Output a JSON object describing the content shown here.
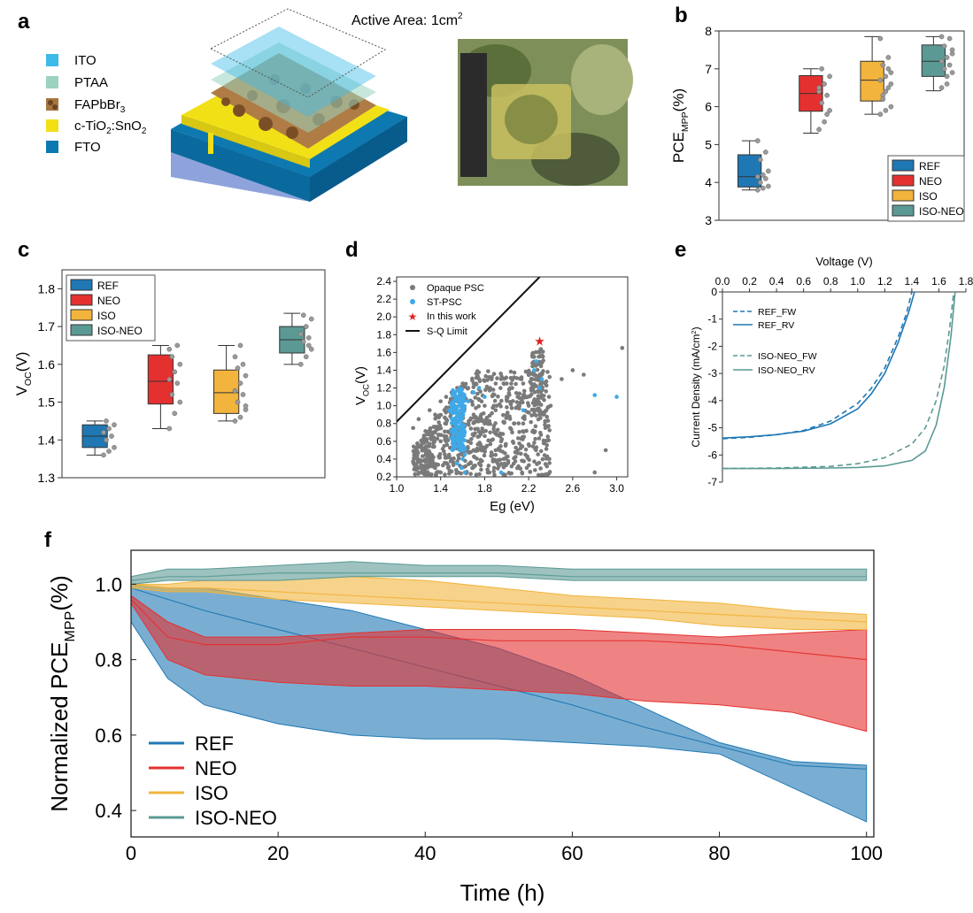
{
  "colors": {
    "REF": "#1f78b4",
    "NEO": "#e53030",
    "ISO": "#f2b43c",
    "ISO-NEO": "#5b9a94",
    "opaque": "#7a7a7a",
    "st": "#3fa9e8",
    "star": "#e02020",
    "ITO": "#3dbbe8",
    "PTAA": "#9bd3c0",
    "ctio": "#f2e017",
    "FTO": "#0d79b0"
  },
  "panel_a": {
    "label": "a",
    "active_area": "Active Area: 1cm",
    "active_area_sup": "2",
    "legend": [
      {
        "icon": "ito-swatch",
        "text": "ITO"
      },
      {
        "icon": "ptaa-swatch",
        "text": "PTAA"
      },
      {
        "icon": "perovskite-swatch",
        "text": "FAPbBr",
        "sub": "3"
      },
      {
        "icon": "ctio-swatch",
        "text": "c-TiO",
        "sub": "2",
        "after": ":SnO",
        "sub2": "2"
      },
      {
        "icon": "fto-swatch",
        "text": "FTO"
      }
    ]
  },
  "chart_data": [
    {
      "panel": "b",
      "type": "box",
      "ylabel": "PCE",
      "ylabel_sub": "MPP",
      "ylabel_unit": "(%)",
      "ylim": [
        3,
        8
      ],
      "yticks": [
        "3",
        "4",
        "5",
        "6",
        "7",
        "8"
      ],
      "legend_position": "bottom-right",
      "series": [
        {
          "name": "REF",
          "q1": 3.88,
          "median": 4.15,
          "q3": 4.73,
          "min": 3.8,
          "max": 5.1,
          "points": [
            3.8,
            3.85,
            3.9,
            4.0,
            4.1,
            4.15,
            4.2,
            4.3,
            4.6,
            4.8,
            5.1
          ]
        },
        {
          "name": "NEO",
          "q1": 5.88,
          "median": 6.35,
          "q3": 6.82,
          "min": 5.3,
          "max": 7.0,
          "points": [
            5.4,
            5.6,
            5.9,
            6.1,
            6.3,
            6.4,
            6.6,
            6.8,
            7.0,
            5.8,
            6.5
          ]
        },
        {
          "name": "ISO",
          "q1": 6.15,
          "median": 6.7,
          "q3": 7.2,
          "min": 5.8,
          "max": 7.85,
          "points": [
            5.8,
            5.9,
            6.0,
            6.3,
            6.5,
            6.7,
            6.8,
            6.9,
            7.1,
            7.3,
            7.8,
            6.4,
            6.6,
            6.2,
            7.0
          ]
        },
        {
          "name": "ISO-NEO",
          "q1": 6.8,
          "median": 7.2,
          "q3": 7.63,
          "min": 6.42,
          "max": 7.85,
          "points": [
            6.5,
            6.6,
            6.9,
            7.0,
            7.1,
            7.2,
            7.3,
            7.5,
            7.6,
            7.8,
            7.85,
            6.8,
            7.4
          ]
        }
      ]
    },
    {
      "panel": "c",
      "type": "box",
      "ylabel": "V",
      "ylabel_sub": "OC",
      "ylabel_unit": "(V)",
      "ylim": [
        1.3,
        1.85
      ],
      "yticks": [
        "1.3",
        "1.4",
        "1.5",
        "1.6",
        "1.7",
        "1.8"
      ],
      "legend_position": "top-left",
      "series": [
        {
          "name": "REF",
          "q1": 1.38,
          "median": 1.41,
          "q3": 1.44,
          "min": 1.36,
          "max": 1.45,
          "points": [
            1.36,
            1.37,
            1.38,
            1.4,
            1.41,
            1.42,
            1.43,
            1.44,
            1.45
          ]
        },
        {
          "name": "NEO",
          "q1": 1.495,
          "median": 1.555,
          "q3": 1.625,
          "min": 1.43,
          "max": 1.65,
          "points": [
            1.43,
            1.47,
            1.5,
            1.52,
            1.55,
            1.56,
            1.58,
            1.6,
            1.62,
            1.65,
            1.64
          ]
        },
        {
          "name": "ISO",
          "q1": 1.47,
          "median": 1.525,
          "q3": 1.585,
          "min": 1.45,
          "max": 1.65,
          "points": [
            1.45,
            1.46,
            1.48,
            1.5,
            1.52,
            1.53,
            1.55,
            1.57,
            1.59,
            1.6,
            1.62,
            1.65,
            1.49
          ]
        },
        {
          "name": "ISO-NEO",
          "q1": 1.63,
          "median": 1.665,
          "q3": 1.7,
          "min": 1.6,
          "max": 1.735,
          "points": [
            1.6,
            1.62,
            1.64,
            1.66,
            1.67,
            1.68,
            1.7,
            1.72,
            1.73,
            1.65
          ]
        }
      ]
    },
    {
      "panel": "d",
      "type": "scatter",
      "xlabel": "Eg (eV)",
      "ylabel": "V",
      "ylabel_sub": "OC",
      "ylabel_unit": "(V)",
      "xlim": [
        1.0,
        3.1
      ],
      "ylim": [
        0.2,
        2.45
      ],
      "xticks": [
        "1.0",
        "1.4",
        "1.8",
        "2.2",
        "2.6",
        "3.0"
      ],
      "yticks": [
        "0.2",
        "0.4",
        "0.6",
        "0.8",
        "1.0",
        "1.2",
        "1.4",
        "1.6",
        "1.8",
        "2.0",
        "2.2",
        "2.4"
      ],
      "legend": [
        "Opaque PSC",
        "ST-PSC",
        "In this work",
        "S-Q Limit"
      ],
      "this_work": {
        "x": 2.3,
        "y": 1.73
      },
      "sq_limit": [
        [
          1.0,
          0.82
        ],
        [
          2.3,
          2.45
        ]
      ],
      "st_points": [
        [
          1.52,
          0.85
        ],
        [
          1.55,
          0.9
        ],
        [
          1.57,
          1.0
        ],
        [
          1.58,
          0.95
        ],
        [
          1.6,
          1.1
        ],
        [
          1.56,
          0.75
        ],
        [
          1.58,
          0.6
        ],
        [
          1.6,
          0.5
        ],
        [
          1.62,
          0.45
        ],
        [
          1.55,
          0.35
        ],
        [
          1.59,
          0.3
        ],
        [
          1.62,
          0.25
        ],
        [
          1.65,
          1.05
        ],
        [
          1.7,
          1.15
        ],
        [
          1.75,
          1.2
        ],
        [
          1.8,
          1.1
        ],
        [
          1.5,
          1.0
        ],
        [
          1.53,
          1.1
        ],
        [
          1.48,
          0.95
        ],
        [
          1.6,
          0.4
        ],
        [
          2.25,
          1.4
        ],
        [
          2.3,
          1.2
        ],
        [
          2.27,
          1.5
        ],
        [
          2.32,
          1.3
        ],
        [
          2.8,
          1.12
        ],
        [
          3.0,
          1.1
        ],
        [
          1.95,
          0.25
        ],
        [
          2.15,
          0.95
        ]
      ],
      "opaque_points": [
        [
          1.2,
          0.85
        ],
        [
          1.3,
          0.95
        ],
        [
          1.4,
          1.05
        ],
        [
          1.35,
          0.7
        ],
        [
          1.45,
          1.1
        ],
        [
          1.5,
          1.15
        ],
        [
          1.55,
          1.2
        ],
        [
          1.6,
          1.25
        ],
        [
          1.65,
          1.2
        ],
        [
          1.7,
          1.25
        ],
        [
          1.75,
          1.3
        ],
        [
          1.8,
          1.28
        ],
        [
          1.85,
          1.2
        ],
        [
          1.9,
          1.25
        ],
        [
          1.95,
          1.3
        ],
        [
          2.0,
          1.25
        ],
        [
          2.05,
          1.2
        ],
        [
          2.1,
          1.1
        ],
        [
          2.15,
          1.25
        ],
        [
          2.2,
          1.35
        ],
        [
          2.25,
          1.55
        ],
        [
          2.3,
          1.6
        ],
        [
          1.25,
          0.5
        ],
        [
          1.3,
          0.4
        ],
        [
          1.35,
          0.3
        ],
        [
          1.45,
          0.6
        ],
        [
          1.5,
          0.4
        ],
        [
          1.65,
          0.6
        ],
        [
          1.7,
          0.5
        ],
        [
          1.75,
          0.35
        ],
        [
          1.8,
          0.8
        ],
        [
          1.85,
          0.7
        ],
        [
          1.9,
          0.5
        ],
        [
          1.95,
          0.6
        ],
        [
          2.0,
          0.9
        ],
        [
          2.05,
          0.7
        ],
        [
          2.1,
          0.5
        ],
        [
          2.15,
          0.8
        ],
        [
          2.2,
          1.0
        ],
        [
          2.25,
          0.7
        ],
        [
          2.3,
          0.9
        ],
        [
          2.35,
          0.6
        ],
        [
          2.4,
          1.0
        ],
        [
          2.5,
          1.3
        ],
        [
          2.6,
          1.4
        ],
        [
          2.7,
          1.35
        ],
        [
          3.05,
          1.65
        ],
        [
          2.9,
          0.5
        ],
        [
          2.8,
          0.25
        ],
        [
          1.15,
          0.75
        ],
        [
          1.2,
          0.3
        ],
        [
          1.4,
          0.25
        ],
        [
          1.6,
          0.8
        ],
        [
          1.7,
          0.9
        ],
        [
          1.8,
          1.0
        ],
        [
          1.9,
          0.95
        ],
        [
          2.0,
          1.1
        ],
        [
          1.55,
          1.05
        ],
        [
          1.45,
          0.85
        ],
        [
          1.35,
          0.9
        ]
      ]
    },
    {
      "panel": "e",
      "type": "line",
      "xlabel": "Voltage (V)",
      "ylabel": "Current Density (mA/cm",
      "ylabel_sup": "2",
      "ylabel_end": ")",
      "xlim": [
        0,
        1.8
      ],
      "ylim": [
        -7,
        0
      ],
      "xticks": [
        "0.0",
        "0.2",
        "0.4",
        "0.6",
        "0.8",
        "1.0",
        "1.2",
        "1.4",
        "1.6",
        "1.8"
      ],
      "yticks": [
        "0",
        "-1",
        "-2",
        "-3",
        "-4",
        "-5",
        "-6",
        "-7"
      ],
      "series": [
        {
          "name": "REF_FW",
          "color_key": "REF",
          "dash": true,
          "x": [
            0,
            0.2,
            0.4,
            0.6,
            0.8,
            1.0,
            1.1,
            1.2,
            1.3,
            1.36,
            1.4
          ],
          "y": [
            -5.4,
            -5.35,
            -5.25,
            -5.1,
            -4.75,
            -4.1,
            -3.55,
            -2.8,
            -1.65,
            -0.8,
            0
          ]
        },
        {
          "name": "REF_RV",
          "color_key": "REF",
          "dash": false,
          "x": [
            0,
            0.2,
            0.4,
            0.6,
            0.8,
            1.0,
            1.1,
            1.2,
            1.3,
            1.38,
            1.42
          ],
          "y": [
            -5.38,
            -5.33,
            -5.25,
            -5.12,
            -4.85,
            -4.3,
            -3.75,
            -3.0,
            -1.85,
            -0.7,
            0
          ]
        },
        {
          "name": "ISO-NEO_FW",
          "color_key": "ISO-NEO",
          "dash": true,
          "x": [
            0,
            0.4,
            0.8,
            1.0,
            1.2,
            1.4,
            1.5,
            1.58,
            1.64,
            1.68,
            1.71
          ],
          "y": [
            -6.5,
            -6.48,
            -6.42,
            -6.32,
            -6.1,
            -5.6,
            -5.0,
            -4.0,
            -2.7,
            -1.3,
            0
          ]
        },
        {
          "name": "ISO-NEO_RV",
          "color_key": "ISO-NEO",
          "dash": false,
          "x": [
            0,
            0.4,
            0.8,
            1.0,
            1.2,
            1.4,
            1.5,
            1.58,
            1.64,
            1.69,
            1.72
          ],
          "y": [
            -6.5,
            -6.5,
            -6.48,
            -6.46,
            -6.4,
            -6.2,
            -5.85,
            -4.9,
            -3.5,
            -1.6,
            0
          ]
        }
      ]
    },
    {
      "panel": "f",
      "type": "area",
      "xlabel": "Time (h)",
      "ylabel": "Normalized PCE",
      "ylabel_sub": "MPP",
      "ylabel_unit": "(%)",
      "xlim": [
        0,
        101
      ],
      "ylim": [
        0.33,
        1.09
      ],
      "xticks": [
        "0",
        "20",
        "40",
        "60",
        "80",
        "100"
      ],
      "yticks": [
        "0.4",
        "0.6",
        "0.8",
        "1.0"
      ],
      "legend_position": "bottom-left",
      "series": [
        {
          "name": "REF",
          "x": [
            0,
            5,
            10,
            20,
            30,
            40,
            50,
            60,
            70,
            80,
            90,
            100
          ],
          "upper": [
            1.0,
            0.99,
            0.99,
            0.96,
            0.93,
            0.88,
            0.83,
            0.76,
            0.67,
            0.58,
            0.53,
            0.52
          ],
          "mid": [
            0.99,
            0.96,
            0.93,
            0.88,
            0.83,
            0.78,
            0.73,
            0.68,
            0.62,
            0.57,
            0.52,
            0.51
          ],
          "lower": [
            0.9,
            0.75,
            0.68,
            0.63,
            0.6,
            0.59,
            0.59,
            0.58,
            0.57,
            0.55,
            0.46,
            0.37
          ]
        },
        {
          "name": "NEO",
          "x": [
            0,
            5,
            10,
            20,
            30,
            40,
            50,
            60,
            70,
            80,
            90,
            100
          ],
          "upper": [
            0.97,
            0.9,
            0.86,
            0.86,
            0.87,
            0.88,
            0.88,
            0.88,
            0.87,
            0.86,
            0.87,
            0.88
          ],
          "mid": [
            0.96,
            0.86,
            0.84,
            0.84,
            0.86,
            0.86,
            0.85,
            0.85,
            0.85,
            0.84,
            0.82,
            0.8
          ],
          "lower": [
            0.95,
            0.8,
            0.76,
            0.74,
            0.73,
            0.73,
            0.72,
            0.71,
            0.69,
            0.68,
            0.66,
            0.61
          ]
        },
        {
          "name": "ISO",
          "x": [
            0,
            5,
            10,
            20,
            30,
            40,
            50,
            60,
            70,
            80,
            90,
            100
          ],
          "upper": [
            1.0,
            1.0,
            1.01,
            1.01,
            1.02,
            1.01,
            0.99,
            0.97,
            0.96,
            0.95,
            0.93,
            0.92
          ],
          "mid": [
            1.0,
            0.99,
            0.99,
            0.98,
            0.97,
            0.96,
            0.95,
            0.94,
            0.93,
            0.92,
            0.91,
            0.9
          ],
          "lower": [
            0.99,
            0.98,
            0.98,
            0.96,
            0.95,
            0.94,
            0.93,
            0.92,
            0.91,
            0.89,
            0.88,
            0.88
          ]
        },
        {
          "name": "ISO-NEO",
          "x": [
            0,
            5,
            10,
            20,
            30,
            40,
            50,
            60,
            70,
            80,
            90,
            100
          ],
          "upper": [
            1.02,
            1.04,
            1.04,
            1.05,
            1.06,
            1.05,
            1.05,
            1.04,
            1.04,
            1.04,
            1.04,
            1.04
          ],
          "mid": [
            1.01,
            1.02,
            1.02,
            1.03,
            1.03,
            1.03,
            1.03,
            1.02,
            1.02,
            1.02,
            1.02,
            1.02
          ],
          "lower": [
            1.0,
            1.01,
            1.01,
            1.01,
            1.02,
            1.02,
            1.02,
            1.01,
            1.01,
            1.01,
            1.01,
            1.01
          ]
        }
      ]
    }
  ]
}
